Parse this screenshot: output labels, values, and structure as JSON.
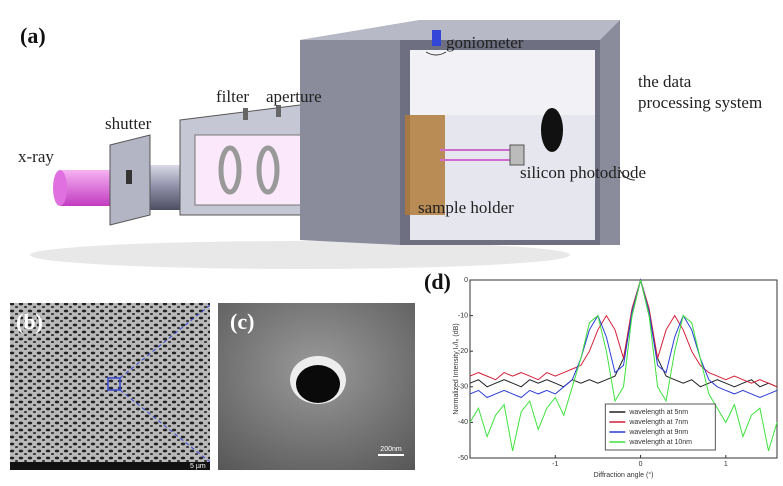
{
  "panels": {
    "a": "(a)",
    "b": "(b)",
    "c": "(c)",
    "d": "(d)"
  },
  "labels": {
    "goniometer": "goniometer",
    "shutter": "shutter",
    "filter": "filter",
    "aperture": "aperture",
    "data_system": [
      "the data",
      "processing system"
    ],
    "xray": "x-ray",
    "photodiode": "silicon photodiode",
    "sample_holder": "sample holder"
  },
  "images": {
    "b_scale": "5 µm",
    "c_scale": "200nm"
  },
  "chart_data": {
    "type": "line",
    "xlabel": "Diffraction angle (°)",
    "ylabel": "Normalized Intensity Iₜ/I₀ (dB)",
    "x": [
      -2.0,
      -1.9,
      -1.8,
      -1.7,
      -1.6,
      -1.5,
      -1.4,
      -1.3,
      -1.2,
      -1.1,
      -1.0,
      -0.9,
      -0.8,
      -0.7,
      -0.6,
      -0.5,
      -0.4,
      -0.3,
      -0.2,
      -0.1,
      0.0,
      0.1,
      0.2,
      0.3,
      0.4,
      0.5,
      0.6,
      0.7,
      0.8,
      0.9,
      1.0,
      1.1,
      1.2,
      1.3,
      1.4,
      1.5,
      1.6
    ],
    "xlim": [
      -2,
      1.6
    ],
    "xticks": [
      -1,
      0,
      1
    ],
    "ylim": [
      -50,
      0
    ],
    "yticks": [
      0,
      -10,
      -20,
      -30,
      -40,
      -50
    ],
    "legend": "lower right",
    "series": [
      {
        "name": "wavelength at 5nm",
        "color": "#222222",
        "values": [
          -29,
          -28,
          -30,
          -29,
          -28,
          -29,
          -30,
          -28,
          -29,
          -28,
          -29,
          -30,
          -28,
          -29,
          -28,
          -29,
          -28,
          -27,
          -22,
          -10,
          0,
          -10,
          -22,
          -27,
          -28,
          -29,
          -28,
          -30,
          -29,
          -28,
          -29,
          -30,
          -29,
          -28,
          -30,
          -29,
          -30
        ]
      },
      {
        "name": "wavelength at 7nm",
        "color": "#d4213a",
        "values": [
          -27,
          -26,
          -27,
          -28,
          -26,
          -27,
          -26,
          -27,
          -28,
          -26,
          -27,
          -26,
          -25,
          -24,
          -20,
          -14,
          -10,
          -14,
          -22,
          -8,
          0,
          -8,
          -22,
          -14,
          -10,
          -14,
          -20,
          -24,
          -26,
          -27,
          -28,
          -27,
          -28,
          -29,
          -28,
          -29,
          -30
        ]
      },
      {
        "name": "wavelength at 9nm",
        "color": "#2a3cd6",
        "values": [
          -32,
          -31,
          -33,
          -32,
          -31,
          -32,
          -33,
          -31,
          -32,
          -31,
          -32,
          -30,
          -28,
          -22,
          -14,
          -10,
          -16,
          -26,
          -24,
          -9,
          0,
          -9,
          -24,
          -26,
          -16,
          -10,
          -14,
          -22,
          -28,
          -30,
          -31,
          -32,
          -31,
          -32,
          -33,
          -32,
          -31
        ]
      },
      {
        "name": "wavelength at 10nm",
        "color": "#3fe23f",
        "values": [
          -40,
          -36,
          -44,
          -38,
          -35,
          -48,
          -37,
          -34,
          -42,
          -36,
          -33,
          -38,
          -30,
          -22,
          -12,
          -10,
          -20,
          -34,
          -30,
          -10,
          0,
          -10,
          -30,
          -34,
          -20,
          -10,
          -12,
          -22,
          -32,
          -36,
          -40,
          -35,
          -44,
          -38,
          -36,
          -48,
          -40
        ]
      }
    ]
  }
}
